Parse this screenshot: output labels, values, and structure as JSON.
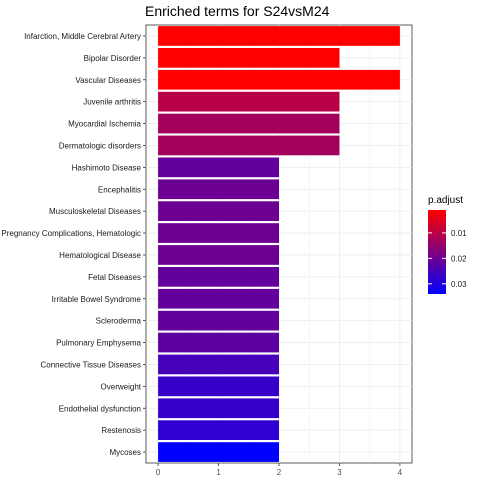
{
  "chart_data": {
    "type": "bar",
    "orientation": "horizontal",
    "title": "Enriched terms for  S24vsM24",
    "xlabel": "",
    "ylabel": "",
    "xlim": [
      0,
      4
    ],
    "x_ticks": [
      "0",
      "1",
      "2",
      "3",
      "4"
    ],
    "grid": true,
    "legend_position": "right",
    "color_scale": {
      "title": "p.adjust",
      "ticks": [
        "0.01",
        "0.02",
        "0.03"
      ],
      "tick_values": [
        0.01,
        0.02,
        0.03
      ],
      "low_color": "#ff0000",
      "high_color": "#0000ff",
      "range": [
        0.001,
        0.034
      ]
    },
    "categories": [
      "Infarction, Middle Cerebral Artery",
      "Bipolar Disorder",
      "Vascular Diseases",
      "Juvenile arthritis",
      "Myocardial Ischemia",
      "Dermatologic disorders",
      "Hashimoto Disease",
      "Encephalitis",
      "Musculoskeletal Diseases",
      "Pregnancy Complications, Hematologic",
      "Hematological Disease",
      "Fetal Diseases",
      "Irritable Bowel Syndrome",
      "Scleroderma",
      "Pulmonary Emphysema",
      "Connective Tissue Diseases",
      "Overweight",
      "Endothelial dysfunction",
      "Restenosis",
      "Mycoses"
    ],
    "values": [
      4,
      3,
      4,
      3,
      3,
      3,
      2,
      2,
      2,
      2,
      2,
      2,
      2,
      2,
      2,
      2,
      2,
      2,
      2,
      2
    ],
    "p_adjust": [
      0.001,
      0.001,
      0.001,
      0.01,
      0.013,
      0.013,
      0.021,
      0.02,
      0.02,
      0.02,
      0.02,
      0.021,
      0.021,
      0.021,
      0.022,
      0.025,
      0.027,
      0.027,
      0.028,
      0.034
    ]
  }
}
